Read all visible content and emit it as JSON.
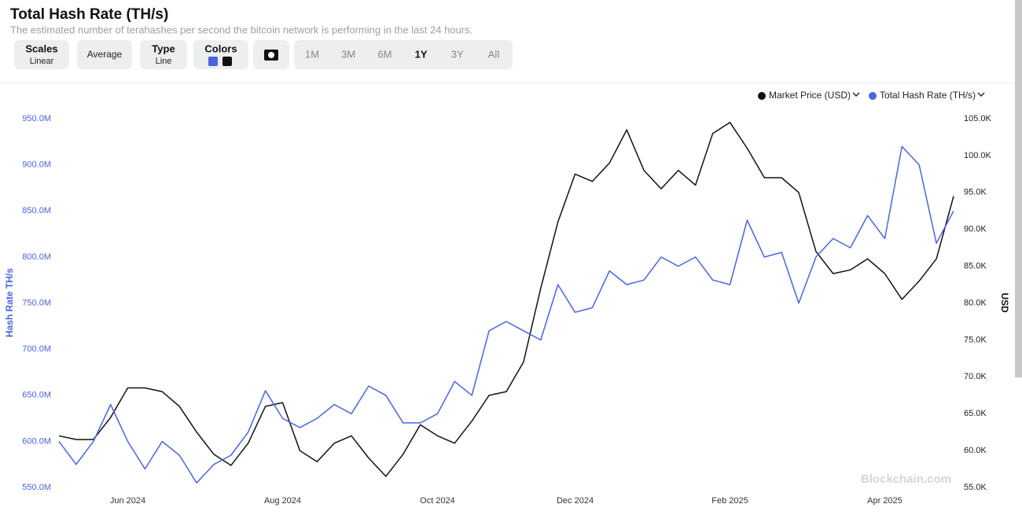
{
  "header": {
    "title": "Total Hash Rate (TH/s)",
    "subtitle": "The estimated number of terahashes per second the bitcoin network is performing in the last 24 hours."
  },
  "toolbar": {
    "buttons": [
      {
        "label": "Scales",
        "sub": "Linear"
      },
      {
        "label": "Average"
      },
      {
        "label": "Type",
        "sub": "Line"
      },
      {
        "label": "Colors"
      }
    ],
    "ranges": [
      "1M",
      "3M",
      "6M",
      "1Y",
      "3Y",
      "All"
    ],
    "active_range": "1Y"
  },
  "chart_data": {
    "type": "line",
    "categories": [
      null,
      null,
      null,
      null,
      "Jun 2024",
      null,
      null,
      null,
      null,
      null,
      null,
      null,
      null,
      "Aug 2024",
      null,
      null,
      null,
      null,
      null,
      null,
      null,
      null,
      "Oct 2024",
      null,
      null,
      null,
      null,
      null,
      null,
      null,
      "Dec 2024",
      null,
      null,
      null,
      null,
      null,
      null,
      null,
      null,
      "Feb 2025",
      null,
      null,
      null,
      null,
      null,
      null,
      null,
      null,
      "Apr 2025",
      null,
      null,
      null,
      null
    ],
    "ylabel": "Hash Rate TH/s",
    "y2label": "USD",
    "ylim": [
      550000000,
      950000000
    ],
    "yticks": [
      {
        "value": 550000000,
        "label": "550.0M"
      },
      {
        "value": 600000000,
        "label": "600.0M"
      },
      {
        "value": 650000000,
        "label": "650.0M"
      },
      {
        "value": 700000000,
        "label": "700.0M"
      },
      {
        "value": 750000000,
        "label": "750.0M"
      },
      {
        "value": 800000000,
        "label": "800.0M"
      },
      {
        "value": 850000000,
        "label": "850.0M"
      },
      {
        "value": 900000000,
        "label": "900.0M"
      },
      {
        "value": 950000000,
        "label": "950.0M"
      }
    ],
    "y2lim": [
      55000,
      105000
    ],
    "y2ticks": [
      {
        "value": 55000,
        "label": "55.0K"
      },
      {
        "value": 60000,
        "label": "60.0K"
      },
      {
        "value": 65000,
        "label": "65.0K"
      },
      {
        "value": 70000,
        "label": "70.0K"
      },
      {
        "value": 75000,
        "label": "75.0K"
      },
      {
        "value": 80000,
        "label": "80.0K"
      },
      {
        "value": 85000,
        "label": "85.0K"
      },
      {
        "value": 90000,
        "label": "90.0K"
      },
      {
        "value": 95000,
        "label": "95.0K"
      },
      {
        "value": 100000,
        "label": "100.0K"
      },
      {
        "value": 105000,
        "label": "105.0K"
      }
    ],
    "legend": "top-right",
    "series": [
      {
        "name": "Market Price (USD)",
        "color": "#111111",
        "axis": "y2",
        "values": [
          62000,
          61500,
          61500,
          64500,
          68500,
          68500,
          68000,
          66000,
          62500,
          59500,
          58000,
          61000,
          66000,
          66500,
          60000,
          58500,
          61000,
          62000,
          59000,
          56500,
          59500,
          63500,
          62000,
          61000,
          64000,
          67500,
          68000,
          72000,
          82000,
          91000,
          97500,
          96500,
          99000,
          103500,
          98000,
          95500,
          98000,
          96000,
          103000,
          104500,
          101000,
          97000,
          97000,
          95000,
          87000,
          84000,
          84500,
          86000,
          84000,
          80500,
          83000,
          86000,
          94500
        ]
      },
      {
        "name": "Total Hash Rate (TH/s)",
        "color": "#4a64e0",
        "axis": "y",
        "values": [
          600000000,
          575000000,
          600000000,
          640000000,
          600000000,
          570000000,
          600000000,
          585000000,
          555000000,
          575000000,
          585000000,
          610000000,
          655000000,
          625000000,
          615000000,
          625000000,
          640000000,
          630000000,
          660000000,
          650000000,
          620000000,
          620000000,
          630000000,
          665000000,
          650000000,
          720000000,
          730000000,
          720000000,
          710000000,
          770000000,
          740000000,
          745000000,
          785000000,
          770000000,
          775000000,
          800000000,
          790000000,
          800000000,
          775000000,
          770000000,
          840000000,
          800000000,
          805000000,
          750000000,
          800000000,
          820000000,
          810000000,
          845000000,
          820000000,
          920000000,
          900000000,
          815000000,
          850000000
        ]
      }
    ],
    "watermark": "Blockchain.com"
  }
}
